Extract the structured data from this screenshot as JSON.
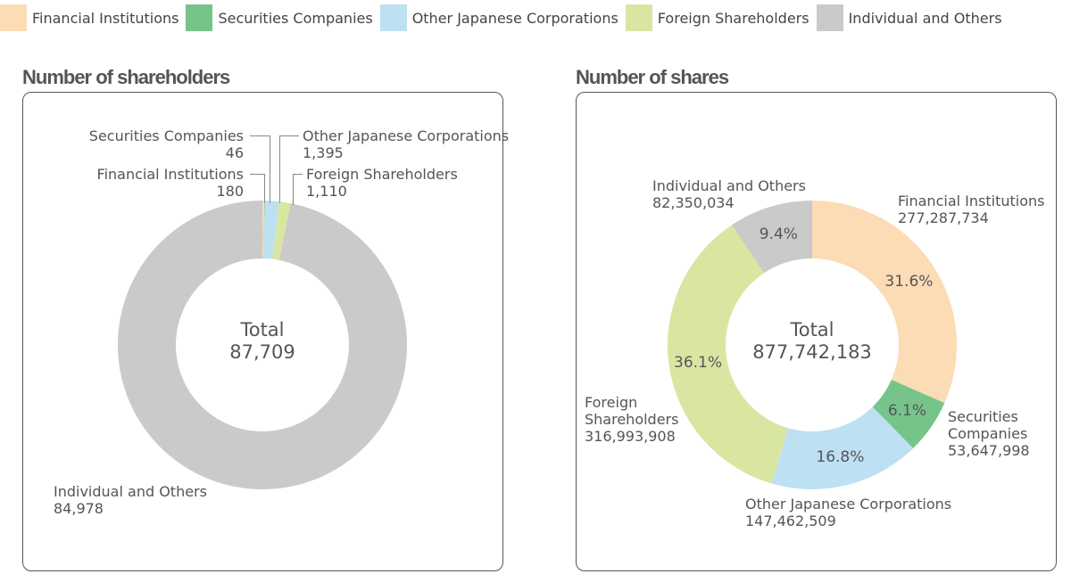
{
  "legend": [
    {
      "label": "Financial Institutions",
      "color": "#fbdcb5"
    },
    {
      "label": "Securities Companies",
      "color": "#76c48a"
    },
    {
      "label": "Other Japanese Corporations",
      "color": "#bde0f2"
    },
    {
      "label": "Foreign Shareholders",
      "color": "#d9e6a2"
    },
    {
      "label": "Individual and Others",
      "color": "#c9cac9"
    }
  ],
  "chart_data": [
    {
      "type": "pie",
      "title": "Number of shareholders",
      "center_label": "Total",
      "total": "87,709",
      "categories": [
        "Financial Institutions",
        "Securities Companies",
        "Other Japanese Corporations",
        "Foreign Shareholders",
        "Individual and Others"
      ],
      "values": [
        180,
        46,
        1395,
        1110,
        84978
      ],
      "value_labels": [
        "180",
        "46",
        "1,395",
        "1,110",
        "84,978"
      ]
    },
    {
      "type": "pie",
      "title": "Number of shares",
      "center_label": "Total",
      "total": "877,742,183",
      "categories": [
        "Financial Institutions",
        "Securities Companies",
        "Other Japanese Corporations",
        "Foreign Shareholders",
        "Individual and Others"
      ],
      "values": [
        277287734,
        53647998,
        147462509,
        316993908,
        82350034
      ],
      "value_labels": [
        "277,287,734",
        "53,647,998",
        "147,462,509",
        "316,993,908",
        "82,350,034"
      ],
      "percents": [
        "31.6%",
        "6.1%",
        "16.8%",
        "36.1%",
        "9.4%"
      ]
    }
  ],
  "labels2": {
    "fi": "Financial Institutions",
    "sc1": "Securities",
    "sc2": "Companies",
    "fs1": "Foreign",
    "fs2": "Shareholders"
  }
}
